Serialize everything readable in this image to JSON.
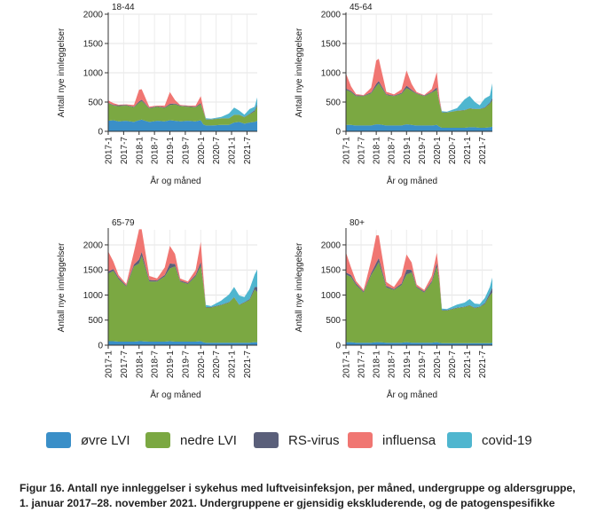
{
  "chart_data": {
    "type": "area",
    "stacked": true,
    "series_names": [
      "øvre LVI",
      "nedre LVI",
      "RS-virus",
      "influensa",
      "covid-19"
    ],
    "colors": [
      "#3a8fc8",
      "#7ba842",
      "#5a5f7a",
      "#f07672",
      "#4fb6cf"
    ],
    "x_tick_labels": [
      "2017-1",
      "2017-7",
      "2018-1",
      "2018-7",
      "2019-1",
      "2019-7",
      "2020-1",
      "2020-7",
      "2021-1",
      "2021-7"
    ],
    "xlabel": "År og måned",
    "ylabel": "Antall nye innleggelser",
    "panels": [
      {
        "title": "18-44",
        "ylim": [
          0,
          2000
        ],
        "yticks": [
          0,
          500,
          1000,
          1500,
          2000
        ],
        "anchors": {
          "months": [
            0,
            2,
            4,
            7,
            10,
            12,
            13,
            16,
            19,
            22,
            24,
            26,
            28,
            31,
            34,
            36,
            37,
            38,
            40,
            44,
            47,
            49,
            51,
            53,
            55,
            57,
            58
          ],
          "ovre": [
            180,
            190,
            170,
            180,
            160,
            190,
            200,
            160,
            180,
            170,
            190,
            180,
            170,
            180,
            170,
            190,
            120,
            100,
            100,
            110,
            110,
            150,
            160,
            130,
            150,
            160,
            180
          ],
          "nedre": [
            300,
            250,
            260,
            260,
            250,
            300,
            320,
            230,
            240,
            230,
            260,
            280,
            260,
            240,
            240,
            270,
            220,
            100,
            100,
            110,
            110,
            130,
            120,
            110,
            140,
            180,
            250
          ],
          "rsv": [
            10,
            10,
            15,
            10,
            10,
            20,
            20,
            10,
            10,
            10,
            20,
            15,
            10,
            10,
            10,
            20,
            10,
            5,
            5,
            5,
            5,
            5,
            5,
            5,
            10,
            20,
            30
          ],
          "influensa": [
            40,
            30,
            10,
            10,
            30,
            200,
            180,
            20,
            10,
            30,
            200,
            60,
            10,
            10,
            20,
            120,
            50,
            0,
            0,
            0,
            0,
            0,
            0,
            0,
            0,
            0,
            0
          ],
          "covid": [
            0,
            0,
            0,
            0,
            0,
            0,
            0,
            0,
            0,
            0,
            0,
            0,
            0,
            0,
            0,
            0,
            0,
            20,
            10,
            20,
            80,
            120,
            70,
            40,
            80,
            60,
            120
          ]
        }
      },
      {
        "title": "45-64",
        "ylim": [
          0,
          2000
        ],
        "yticks": [
          0,
          500,
          1000,
          1500,
          2000
        ],
        "anchors": {
          "months": [
            0,
            2,
            4,
            7,
            10,
            12,
            13,
            16,
            19,
            22,
            24,
            26,
            28,
            31,
            34,
            36,
            37,
            38,
            40,
            44,
            47,
            49,
            51,
            53,
            55,
            57,
            58
          ],
          "ovre": [
            110,
            110,
            100,
            100,
            100,
            120,
            120,
            100,
            100,
            100,
            120,
            110,
            100,
            100,
            100,
            110,
            80,
            60,
            60,
            60,
            60,
            70,
            70,
            60,
            60,
            70,
            80
          ],
          "nedre": [
            600,
            560,
            500,
            500,
            550,
            650,
            700,
            520,
            500,
            540,
            620,
            580,
            540,
            500,
            560,
            600,
            400,
            260,
            260,
            290,
            300,
            320,
            310,
            320,
            340,
            400,
            450
          ],
          "rsv": [
            20,
            20,
            15,
            10,
            15,
            40,
            40,
            15,
            10,
            15,
            40,
            20,
            10,
            10,
            15,
            40,
            15,
            5,
            5,
            5,
            5,
            5,
            5,
            5,
            10,
            20,
            40
          ],
          "influensa": [
            260,
            80,
            20,
            10,
            80,
            400,
            380,
            40,
            20,
            60,
            260,
            100,
            20,
            10,
            50,
            260,
            80,
            0,
            0,
            0,
            0,
            0,
            0,
            0,
            0,
            0,
            0
          ],
          "covid": [
            0,
            0,
            0,
            0,
            0,
            0,
            0,
            0,
            0,
            0,
            0,
            0,
            0,
            0,
            0,
            0,
            0,
            20,
            10,
            40,
            180,
            210,
            120,
            60,
            150,
            120,
            250
          ]
        }
      },
      {
        "title": "65-79",
        "ylim": [
          0,
          2300
        ],
        "yticks": [
          0,
          500,
          1000,
          1500,
          2000
        ],
        "anchors": {
          "months": [
            0,
            2,
            4,
            7,
            10,
            12,
            13,
            16,
            19,
            22,
            24,
            26,
            28,
            31,
            34,
            36,
            37,
            38,
            40,
            44,
            47,
            49,
            51,
            53,
            55,
            57,
            58
          ],
          "ovre": [
            80,
            80,
            70,
            70,
            70,
            80,
            80,
            70,
            70,
            70,
            80,
            70,
            70,
            70,
            70,
            80,
            60,
            50,
            50,
            50,
            50,
            50,
            50,
            50,
            50,
            60,
            60
          ],
          "nedre": [
            1350,
            1400,
            1250,
            1100,
            1500,
            1550,
            1700,
            1200,
            1200,
            1300,
            1450,
            1500,
            1200,
            1150,
            1300,
            1500,
            1150,
            700,
            700,
            750,
            800,
            900,
            750,
            800,
            850,
            1050,
            1000
          ],
          "rsv": [
            40,
            40,
            30,
            20,
            40,
            80,
            80,
            30,
            20,
            30,
            100,
            50,
            20,
            20,
            30,
            80,
            30,
            10,
            10,
            10,
            10,
            10,
            10,
            10,
            20,
            50,
            100
          ],
          "influensa": [
            400,
            150,
            50,
            30,
            250,
            600,
            450,
            80,
            40,
            150,
            350,
            200,
            40,
            30,
            100,
            400,
            150,
            0,
            0,
            0,
            0,
            0,
            0,
            0,
            0,
            0,
            0
          ],
          "covid": [
            0,
            0,
            0,
            0,
            0,
            0,
            0,
            0,
            0,
            0,
            0,
            0,
            0,
            0,
            0,
            0,
            0,
            40,
            20,
            80,
            150,
            200,
            180,
            100,
            200,
            250,
            350
          ]
        }
      },
      {
        "title": "80+",
        "ylim": [
          0,
          2300
        ],
        "yticks": [
          0,
          500,
          1000,
          1500,
          2000
        ],
        "anchors": {
          "months": [
            0,
            2,
            4,
            7,
            10,
            12,
            13,
            16,
            19,
            22,
            24,
            26,
            28,
            31,
            34,
            36,
            37,
            38,
            40,
            44,
            47,
            49,
            51,
            53,
            55,
            57,
            58
          ],
          "ovre": [
            60,
            60,
            50,
            50,
            50,
            60,
            60,
            50,
            50,
            50,
            60,
            50,
            50,
            50,
            50,
            60,
            50,
            40,
            40,
            40,
            40,
            40,
            40,
            40,
            40,
            40,
            50
          ],
          "nedre": [
            1350,
            1300,
            1150,
            1000,
            1350,
            1500,
            1600,
            1100,
            1050,
            1150,
            1350,
            1400,
            1100,
            1000,
            1200,
            1500,
            1200,
            650,
            650,
            700,
            720,
            750,
            700,
            720,
            780,
            950,
            1000
          ],
          "rsv": [
            40,
            40,
            30,
            20,
            40,
            80,
            80,
            30,
            20,
            30,
            100,
            50,
            20,
            20,
            30,
            80,
            30,
            10,
            10,
            10,
            10,
            10,
            10,
            10,
            20,
            50,
            100
          ],
          "influensa": [
            400,
            150,
            50,
            30,
            250,
            550,
            450,
            80,
            40,
            150,
            300,
            150,
            40,
            30,
            100,
            200,
            100,
            0,
            0,
            0,
            0,
            0,
            0,
            0,
            0,
            0,
            0
          ],
          "covid": [
            0,
            0,
            0,
            0,
            0,
            0,
            0,
            0,
            0,
            0,
            0,
            0,
            0,
            0,
            0,
            0,
            0,
            30,
            20,
            60,
            80,
            120,
            80,
            50,
            100,
            120,
            200
          ]
        }
      }
    ]
  },
  "legend": [
    {
      "label": "øvre LVI",
      "color": "#3a8fc8"
    },
    {
      "label": "nedre LVI",
      "color": "#7ba842"
    },
    {
      "label": "RS-virus",
      "color": "#5a5f7a"
    },
    {
      "label": "influensa",
      "color": "#f07672"
    },
    {
      "label": "covid-19",
      "color": "#4fb6cf"
    }
  ],
  "caption": {
    "line1": "Figur 16. Antall nye innleggelser i sykehus med luftveisinfeksjon, per måned, undergruppe og aldersgruppe,",
    "line2": "1. januar 2017–28. november 2021. Undergruppene er gjensidig ekskluderende, og de patogenspesifikke"
  }
}
